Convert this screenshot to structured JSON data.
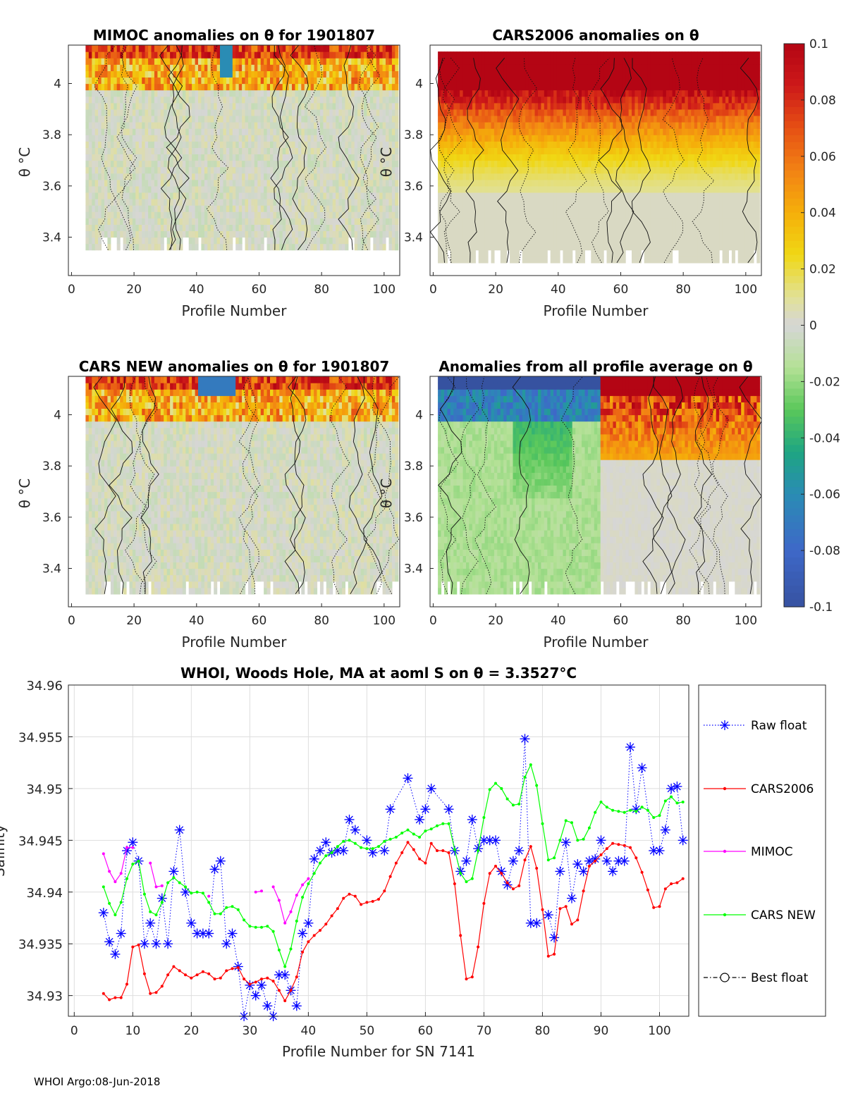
{
  "chart_data": [
    {
      "type": "heatmap",
      "title": "MIMOC anomalies on θ  for 1901807",
      "xlabel": "Profile Number",
      "ylabel": "θ °C",
      "xticks": [
        "0",
        "20",
        "40",
        "60",
        "80",
        "100"
      ],
      "yticks": [
        "3.4",
        "3.6",
        "3.8",
        "4"
      ],
      "xlim": [
        -1,
        105
      ],
      "ylim": [
        3.25,
        4.15
      ],
      "profiles": [
        5,
        104
      ],
      "theta_range": [
        3.35,
        4.15
      ],
      "surface_band_anomaly": 0.06,
      "interior_anomaly": 0.0
    },
    {
      "type": "heatmap",
      "title": "CARS2006 anomalies on θ",
      "xlabel": "Profile Number",
      "ylabel": "θ °C",
      "xticks": [
        "0",
        "20",
        "40",
        "60",
        "80",
        "100"
      ],
      "yticks": [
        "3.4",
        "3.6",
        "3.8",
        "4"
      ],
      "xlim": [
        -1,
        105
      ],
      "ylim": [
        3.25,
        4.15
      ],
      "profiles": [
        2,
        104
      ],
      "theta_range": [
        3.3,
        4.1
      ],
      "surface_band_anomaly": 0.1,
      "interior_anomaly": 0.005
    },
    {
      "type": "heatmap",
      "title": "CARS NEW anomalies on θ for 1901807",
      "xlabel": "Profile Number",
      "ylabel": "θ °C",
      "xticks": [
        "0",
        "20",
        "40",
        "60",
        "80",
        "100"
      ],
      "yticks": [
        "3.4",
        "3.6",
        "3.8",
        "4"
      ],
      "xlim": [
        -1,
        105
      ],
      "ylim": [
        3.25,
        4.15
      ],
      "profiles": [
        5,
        104
      ],
      "theta_range": [
        3.3,
        4.15
      ],
      "surface_band_anomaly": 0.05,
      "interior_anomaly": 0.0
    },
    {
      "type": "heatmap",
      "title": "Anomalies from all profile average on θ",
      "xlabel": "Profile Number",
      "ylabel": "θ °C",
      "xticks": [
        "0",
        "20",
        "40",
        "60",
        "80",
        "100"
      ],
      "yticks": [
        "3.4",
        "3.6",
        "3.8",
        "4"
      ],
      "xlim": [
        -1,
        105
      ],
      "ylim": [
        3.25,
        4.15
      ],
      "profiles": [
        2,
        104
      ],
      "theta_range": [
        3.3,
        4.15
      ],
      "negative_segment": [
        2,
        53
      ],
      "positive_segment": [
        54,
        104
      ],
      "surface_band_anomaly_negative": -0.1,
      "surface_band_anomaly_positive": 0.1
    },
    {
      "type": "line",
      "title": "WHOI, Woods Hole, MA at aoml S on θ = 3.3527°C",
      "xlabel": "Profile Number for SN 7141",
      "ylabel": "Salinity",
      "xlim": [
        -1,
        105
      ],
      "ylim": [
        34.928,
        34.96
      ],
      "xticks": [
        "0",
        "10",
        "20",
        "30",
        "40",
        "50",
        "60",
        "70",
        "80",
        "90",
        "100"
      ],
      "yticks": [
        "34.93",
        "34.935",
        "34.94",
        "34.945",
        "34.95",
        "34.955",
        "34.96"
      ],
      "legend": [
        "Raw float",
        "CARS2006",
        "MIMOC",
        "CARS NEW",
        "Best float"
      ],
      "legend_position": "outside-right",
      "series": [
        {
          "name": "Raw float",
          "color": "#0000ff",
          "style": "dotted-star",
          "x": [
            5,
            6,
            7,
            8,
            9,
            10,
            11,
            12,
            13,
            14,
            15,
            16,
            17,
            18,
            19,
            20,
            21,
            22,
            23,
            24,
            25,
            26,
            27,
            28,
            29,
            30,
            31,
            32,
            33,
            34,
            35,
            36,
            37,
            38,
            39,
            40,
            41,
            42,
            43,
            44,
            45,
            46,
            47,
            48,
            50,
            51,
            53,
            54,
            57,
            59,
            60,
            61,
            64,
            65,
            66,
            67,
            68,
            69,
            70,
            71,
            72,
            73,
            74,
            75,
            76,
            77,
            78,
            79,
            81,
            82,
            83,
            84,
            85,
            86,
            87,
            88,
            89,
            90,
            91,
            92,
            93,
            94,
            95,
            96,
            97,
            99,
            100,
            101,
            102,
            103,
            104
          ],
          "y": [
            34.938,
            34.9352,
            34.934,
            34.936,
            34.944,
            34.9448,
            34.943,
            34.935,
            34.937,
            34.935,
            34.9394,
            34.935,
            34.942,
            34.946,
            34.94,
            34.937,
            34.936,
            34.936,
            34.936,
            34.9422,
            34.943,
            34.935,
            34.936,
            34.9328,
            34.928,
            34.931,
            34.93,
            34.931,
            34.929,
            34.928,
            34.932,
            34.932,
            34.9305,
            34.929,
            34.936,
            34.937,
            34.9432,
            34.944,
            34.9448,
            34.9438,
            34.944,
            34.944,
            34.947,
            34.946,
            34.945,
            34.9438,
            34.944,
            34.948,
            34.951,
            34.947,
            34.948,
            34.95,
            34.948,
            34.944,
            34.942,
            34.943,
            34.947,
            34.9442,
            34.945,
            34.945,
            34.945,
            34.942,
            34.9407,
            34.943,
            34.944,
            34.9548,
            34.937,
            34.937,
            34.9378,
            34.9356,
            34.942,
            34.9448,
            34.9394,
            34.9427,
            34.942,
            34.943,
            34.9432,
            34.945,
            34.943,
            34.942,
            34.943,
            34.943,
            34.954,
            34.948,
            34.952,
            34.944,
            34.944,
            34.946,
            34.95,
            34.9502,
            34.945
          ]
        },
        {
          "name": "CARS2006",
          "color": "#ff0000",
          "style": "line-dot",
          "x": [
            5,
            6,
            7,
            8,
            9,
            10,
            11,
            12,
            13,
            14,
            15,
            16,
            17,
            18,
            19,
            20,
            21,
            22,
            23,
            24,
            25,
            26,
            27,
            28,
            29,
            30,
            31,
            32,
            33,
            34,
            35,
            36,
            37,
            38,
            39,
            40,
            41,
            42,
            43,
            44,
            45,
            46,
            47,
            48,
            49,
            50,
            51,
            52,
            53,
            54,
            55,
            56,
            57,
            58,
            59,
            60,
            61,
            62,
            63,
            64,
            65,
            66,
            67,
            68,
            69,
            70,
            71,
            72,
            73,
            74,
            75,
            76,
            77,
            78,
            79,
            80,
            81,
            82,
            83,
            84,
            85,
            86,
            87,
            88,
            89,
            90,
            91,
            92,
            93,
            94,
            95,
            96,
            97,
            98,
            99,
            100,
            101,
            102,
            103,
            104
          ],
          "y": [
            34.9302,
            34.9296,
            34.9298,
            34.9298,
            34.9311,
            34.9347,
            34.9349,
            34.9321,
            34.9302,
            34.9303,
            34.9309,
            34.932,
            34.9328,
            34.9324,
            34.932,
            34.9317,
            34.932,
            34.9323,
            34.9321,
            34.9316,
            34.9317,
            34.9324,
            34.9326,
            34.9327,
            34.9316,
            34.9311,
            34.9313,
            34.9316,
            34.9317,
            34.9314,
            34.9305,
            34.9295,
            34.9305,
            34.9318,
            34.9342,
            34.9352,
            34.9358,
            34.9363,
            34.9369,
            34.9377,
            34.9384,
            34.9394,
            34.9398,
            34.9396,
            34.9388,
            34.939,
            34.9391,
            34.9393,
            34.9401,
            34.9415,
            34.9428,
            34.9438,
            34.9448,
            34.9441,
            34.9432,
            34.9428,
            34.9447,
            34.944,
            34.944,
            34.9438,
            34.9408,
            34.9358,
            34.9316,
            34.9318,
            34.9347,
            34.9389,
            34.9418,
            34.9425,
            34.9418,
            34.9409,
            34.9403,
            34.9406,
            34.9431,
            34.9444,
            34.9423,
            34.9383,
            34.9338,
            34.934,
            34.9384,
            34.9386,
            34.9369,
            34.9373,
            34.9401,
            34.9425,
            34.943,
            34.9436,
            34.9442,
            34.9447,
            34.9446,
            34.9445,
            34.9443,
            34.9433,
            34.9419,
            34.9402,
            34.9385,
            34.9386,
            34.9403,
            34.9408,
            34.9409,
            34.9413
          ]
        },
        {
          "name": "MIMOC",
          "color": "#ff00ff",
          "style": "line-dot",
          "x": [
            5,
            6,
            7,
            8,
            9,
            10,
            null,
            13,
            14,
            15,
            null,
            23,
            null,
            31,
            32,
            null,
            34,
            35,
            36,
            37,
            38,
            39,
            40
          ],
          "y": [
            34.9437,
            34.942,
            34.941,
            34.9418,
            34.9443,
            34.9443,
            null,
            34.9428,
            34.9405,
            34.9406,
            null,
            34.9396,
            null,
            34.94,
            34.9401,
            null,
            34.9405,
            34.9392,
            34.937,
            34.9381,
            34.9397,
            34.9407,
            34.9413
          ]
        },
        {
          "name": "CARS NEW",
          "color": "#00ff00",
          "style": "line-dot",
          "x": [
            5,
            6,
            7,
            8,
            9,
            10,
            11,
            12,
            13,
            14,
            15,
            16,
            17,
            18,
            19,
            20,
            21,
            22,
            23,
            24,
            25,
            26,
            27,
            28,
            29,
            30,
            31,
            32,
            33,
            34,
            35,
            36,
            37,
            38,
            39,
            40,
            41,
            42,
            43,
            44,
            45,
            46,
            47,
            48,
            49,
            50,
            51,
            52,
            53,
            54,
            55,
            56,
            57,
            58,
            59,
            60,
            61,
            62,
            63,
            64,
            65,
            66,
            67,
            68,
            69,
            70,
            71,
            72,
            73,
            74,
            75,
            76,
            77,
            78,
            79,
            80,
            81,
            82,
            83,
            84,
            85,
            86,
            87,
            88,
            89,
            90,
            91,
            92,
            93,
            94,
            95,
            96,
            97,
            98,
            99,
            100,
            101,
            102,
            103,
            104
          ],
          "y": [
            34.9405,
            34.9389,
            34.9378,
            34.939,
            34.9413,
            34.9427,
            34.943,
            34.9398,
            34.9381,
            34.9378,
            34.939,
            34.9409,
            34.9414,
            34.9409,
            34.9405,
            34.9399,
            34.94,
            34.9399,
            34.939,
            34.9379,
            34.9379,
            34.9385,
            34.9386,
            34.9383,
            34.9373,
            34.9367,
            34.9366,
            34.9366,
            34.9367,
            34.9362,
            34.9344,
            34.9328,
            34.9345,
            34.9372,
            34.9395,
            34.9408,
            34.9418,
            34.9428,
            34.9435,
            34.9438,
            34.9444,
            34.9449,
            34.945,
            34.9447,
            34.9443,
            34.9442,
            34.9442,
            34.9444,
            34.9449,
            34.9451,
            34.9453,
            34.9457,
            34.946,
            34.9456,
            34.9453,
            34.9459,
            34.9461,
            34.9464,
            34.9466,
            34.9466,
            34.9441,
            34.9418,
            34.941,
            34.9413,
            34.944,
            34.9472,
            34.9499,
            34.9505,
            34.95,
            34.949,
            34.9484,
            34.9485,
            34.9511,
            34.9523,
            34.9503,
            34.9466,
            34.9431,
            34.9433,
            34.945,
            34.9469,
            34.9467,
            34.945,
            34.9451,
            34.9462,
            34.9477,
            34.9487,
            34.9482,
            34.9479,
            34.9478,
            34.9477,
            34.9479,
            34.9478,
            34.9482,
            34.9479,
            34.9472,
            34.9474,
            34.9488,
            34.9492,
            34.9486,
            34.9487
          ]
        },
        {
          "name": "Best float",
          "color": "#000000",
          "style": "dashdot-circle",
          "x": [],
          "y": []
        }
      ]
    }
  ],
  "colorbar": {
    "ticks": [
      "0.1",
      "0.08",
      "0.06",
      "0.04",
      "0.02",
      "0",
      "-0.02",
      "-0.04",
      "-0.06",
      "-0.08",
      "-0.1"
    ],
    "min": -0.1,
    "max": 0.1
  },
  "footer": "WHOI Argo:08-Jun-2018"
}
